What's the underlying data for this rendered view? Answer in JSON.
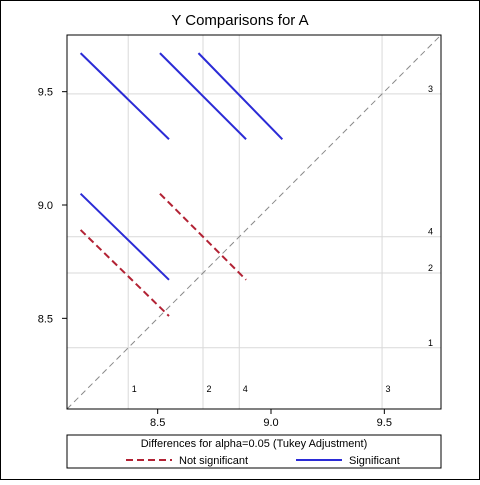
{
  "chart_data": {
    "type": "line",
    "title": "Y Comparisons for A",
    "xlabel": "",
    "ylabel": "",
    "xlim": [
      8.1,
      9.75
    ],
    "ylim": [
      8.1,
      9.75
    ],
    "x_ticks": [
      8.5,
      9.0,
      9.5
    ],
    "y_ticks": [
      8.5,
      9.0,
      9.5
    ],
    "x_tick_labels": [
      "8.5",
      "9.0",
      "9.5"
    ],
    "y_tick_labels": [
      "8.5",
      "9.0",
      "9.5"
    ],
    "grid": false,
    "reference_diagonal": true,
    "levels": [
      {
        "label": "1",
        "mean": 8.37
      },
      {
        "label": "2",
        "mean": 8.7
      },
      {
        "label": "4",
        "mean": 8.86
      },
      {
        "label": "3",
        "mean": 9.49
      }
    ],
    "series": [
      {
        "name": "Not significant",
        "color": "#b22234",
        "dash": true,
        "segments": [
          [
            [
              8.16,
              8.89
            ],
            [
              8.55,
              8.51
            ]
          ],
          [
            [
              8.51,
              9.05
            ],
            [
              8.89,
              8.67
            ]
          ]
        ]
      },
      {
        "name": "Significant",
        "color": "#2b2bd6",
        "dash": false,
        "segments": [
          [
            [
              8.16,
              9.05
            ],
            [
              8.55,
              8.67
            ]
          ],
          [
            [
              8.16,
              9.67
            ],
            [
              8.55,
              9.29
            ]
          ],
          [
            [
              8.51,
              9.67
            ],
            [
              8.89,
              9.29
            ]
          ],
          [
            [
              8.68,
              9.67
            ],
            [
              9.05,
              9.29
            ]
          ]
        ]
      }
    ],
    "legend": {
      "title": "Differences for alpha=0.05 (Tukey Adjustment)",
      "position": "bottom",
      "items": [
        "Not significant",
        "Significant"
      ]
    }
  }
}
